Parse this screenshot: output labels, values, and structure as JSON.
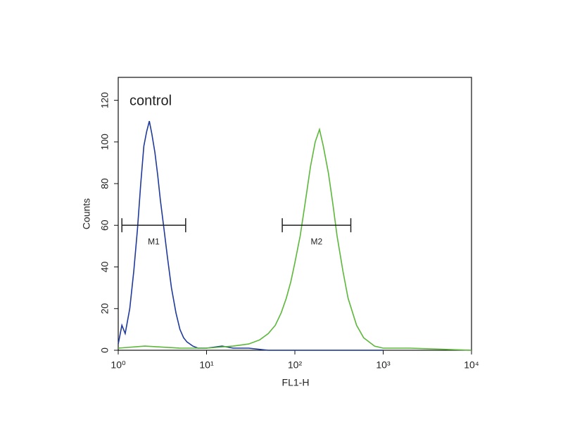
{
  "chart_data": {
    "type": "line",
    "annotation": "control",
    "xlabel": "FL1-H",
    "ylabel": "Counts",
    "xscale": "log",
    "xlim": [
      1,
      10000
    ],
    "xticks": [
      {
        "value": 1,
        "label": "10⁰"
      },
      {
        "value": 10,
        "label": "10¹"
      },
      {
        "value": 100,
        "label": "10²"
      },
      {
        "value": 1000,
        "label": "10³"
      },
      {
        "value": 10000,
        "label": "10⁴"
      }
    ],
    "ylim": [
      0,
      131
    ],
    "yticks": [
      0,
      20,
      40,
      60,
      80,
      100,
      120
    ],
    "series": [
      {
        "color": "#1f3a9a",
        "x": [
          1,
          1.1,
          1.2,
          1.35,
          1.5,
          1.65,
          1.8,
          1.95,
          2.1,
          2.25,
          2.4,
          2.6,
          2.8,
          3.0,
          3.3,
          3.6,
          4.0,
          4.5,
          5,
          5.5,
          6,
          7,
          8,
          10,
          15,
          20,
          30,
          50,
          100,
          200,
          500,
          1000
        ],
        "values": [
          3,
          12,
          8,
          20,
          38,
          58,
          80,
          98,
          105,
          110,
          104,
          95,
          84,
          72,
          58,
          45,
          30,
          18,
          10,
          6,
          4,
          2,
          1,
          1,
          2,
          1,
          1,
          0,
          0,
          0,
          0,
          0
        ]
      },
      {
        "color": "#5cb83a",
        "x": [
          1,
          2,
          5,
          10,
          20,
          30,
          40,
          50,
          60,
          70,
          80,
          90,
          100,
          115,
          130,
          150,
          170,
          190,
          210,
          240,
          270,
          300,
          350,
          400,
          500,
          600,
          800,
          1000,
          2000,
          10000
        ],
        "values": [
          1,
          2,
          1,
          1,
          2,
          3,
          5,
          8,
          12,
          18,
          25,
          33,
          42,
          55,
          70,
          88,
          100,
          106,
          98,
          85,
          70,
          55,
          38,
          25,
          12,
          6,
          2,
          1,
          1,
          0
        ]
      }
    ],
    "markers": [
      {
        "label": "M1",
        "range": [
          1.1,
          5.8
        ],
        "y": 60
      },
      {
        "label": "M2",
        "range": [
          72,
          430
        ],
        "y": 60
      }
    ]
  }
}
